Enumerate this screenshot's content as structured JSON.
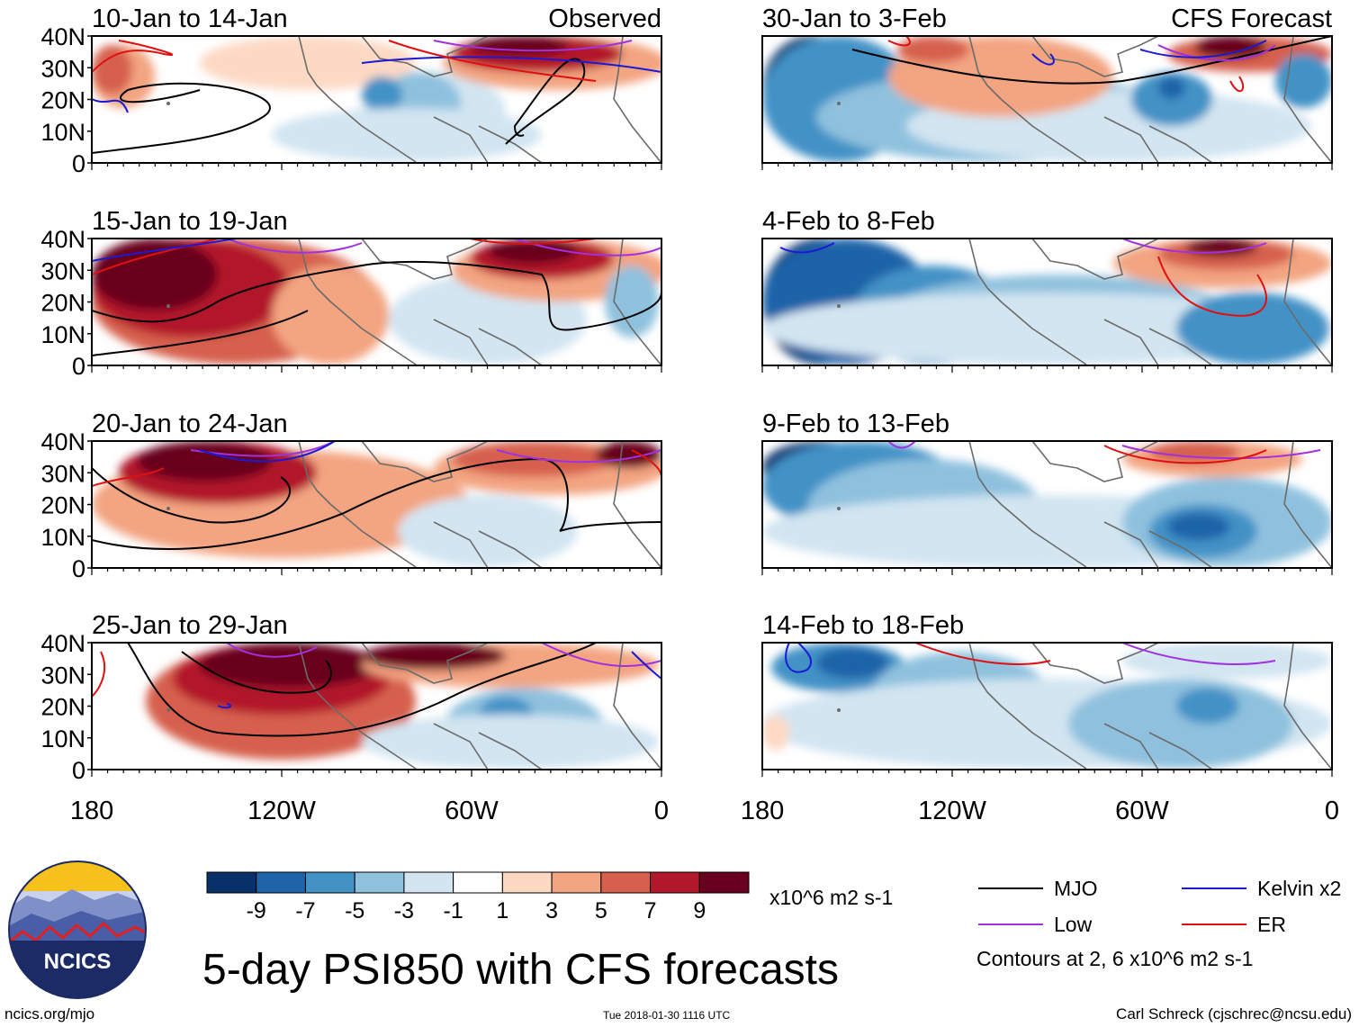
{
  "title": "5-day PSI850 with CFS forecasts",
  "units": "x10^6 m2 s-1",
  "contour_note": "Contours at 2, 6 x10^6 m2 s-1",
  "footer": {
    "left": "ncics.org/mjo",
    "center": "Tue 2018-01-30 1116 UTC",
    "right": "Carl Schreck (cjschrec@ncsu.edu)"
  },
  "logo_text": "NCICS",
  "columns": [
    {
      "label": "Observed"
    },
    {
      "label": "CFS Forecast"
    }
  ],
  "panels": [
    {
      "title": "10-Jan to 14-Jan",
      "column": 0,
      "row": 0,
      "tag": "Observed"
    },
    {
      "title": "15-Jan to 19-Jan",
      "column": 0,
      "row": 1,
      "tag": ""
    },
    {
      "title": "20-Jan to 24-Jan",
      "column": 0,
      "row": 2,
      "tag": ""
    },
    {
      "title": "25-Jan to 29-Jan",
      "column": 0,
      "row": 3,
      "tag": ""
    },
    {
      "title": "30-Jan to 3-Feb",
      "column": 1,
      "row": 0,
      "tag": "CFS Forecast"
    },
    {
      "title": "4-Feb to 8-Feb",
      "column": 1,
      "row": 1,
      "tag": ""
    },
    {
      "title": "9-Feb to 13-Feb",
      "column": 1,
      "row": 2,
      "tag": ""
    },
    {
      "title": "14-Feb to 18-Feb",
      "column": 1,
      "row": 3,
      "tag": ""
    }
  ],
  "y_ticks": [
    "40N",
    "30N",
    "20N",
    "10N",
    "0"
  ],
  "x_ticks": [
    "180",
    "120W",
    "60W",
    "0"
  ],
  "colorbar": {
    "colors": [
      "#08306b",
      "#1f63a8",
      "#4292c6",
      "#8fc1de",
      "#d2e5f1",
      "#ffffff",
      "#fdd9c4",
      "#f3a481",
      "#d6604d",
      "#b2182b",
      "#67001f"
    ],
    "ticks": [
      "-9",
      "-7",
      "-5",
      "-3",
      "-1",
      "1",
      "3",
      "5",
      "7",
      "9"
    ]
  },
  "legend": [
    {
      "label": "MJO",
      "color": "#000000"
    },
    {
      "label": "Kelvin x2",
      "color": "#1a1ad6"
    },
    {
      "label": "Low",
      "color": "#a030e0"
    },
    {
      "label": "ER",
      "color": "#e01010"
    }
  ]
}
